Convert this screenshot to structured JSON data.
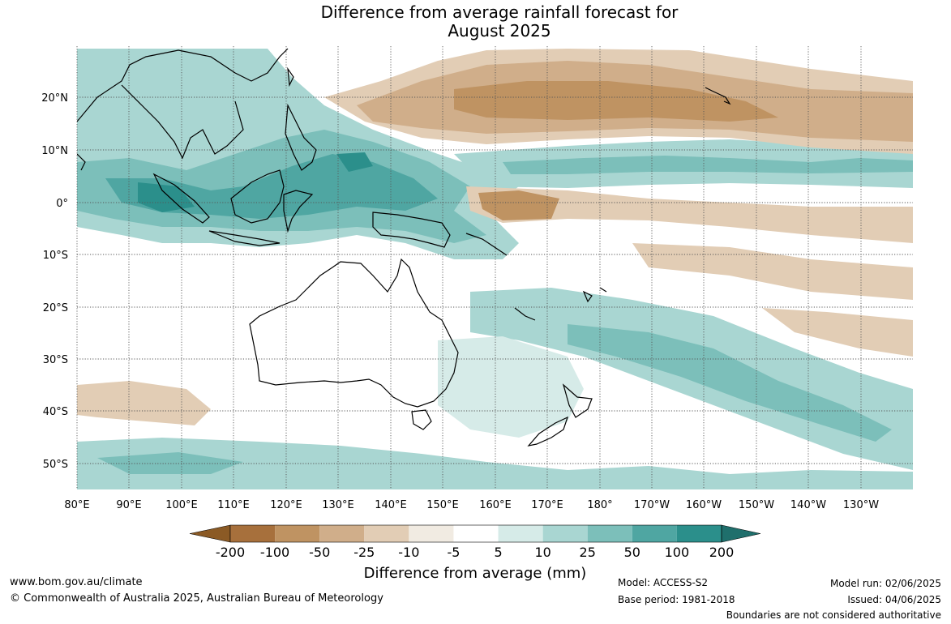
{
  "title": {
    "line1": "Difference from average rainfall forecast for",
    "line2": "August 2025"
  },
  "map": {
    "lat_labels": [
      "20°N",
      "10°N",
      "0°",
      "10°S",
      "20°S",
      "30°S",
      "40°S",
      "50°S"
    ],
    "lon_labels": [
      "80°E",
      "90°E",
      "100°E",
      "110°E",
      "120°E",
      "130°E",
      "140°E",
      "150°E",
      "160°E",
      "170°E",
      "180°",
      "170°W",
      "160°W",
      "150°W",
      "140°W",
      "130°W"
    ]
  },
  "colorbar": {
    "title": "Difference from average (mm)",
    "tick_labels": [
      "-200",
      "-100",
      "-50",
      "-25",
      "-10",
      "-5",
      "5",
      "10",
      "25",
      "50",
      "100",
      "200"
    ],
    "colors": {
      "under": "#8b5a25",
      "bins": [
        "#a7703c",
        "#bf9362",
        "#d0ae8a",
        "#e2cdb5",
        "#f1ebe2",
        "#ffffff",
        "#d6ebe8",
        "#a9d6d2",
        "#7cbfba",
        "#4fa6a2",
        "#2b8f8b"
      ],
      "over": "#1f6f6c"
    }
  },
  "footer": {
    "url": "www.bom.gov.au/climate",
    "copyright": "© Commonwealth of Australia 2025, Australian Bureau of Meteorology",
    "model": "Model: ACCESS-S2",
    "base_period": "Base period: 1981-2018",
    "model_run": "Model run: 02/06/2025",
    "issued": "Issued: 04/06/2025",
    "boundaries": "Boundaries are not considered authoritative"
  }
}
